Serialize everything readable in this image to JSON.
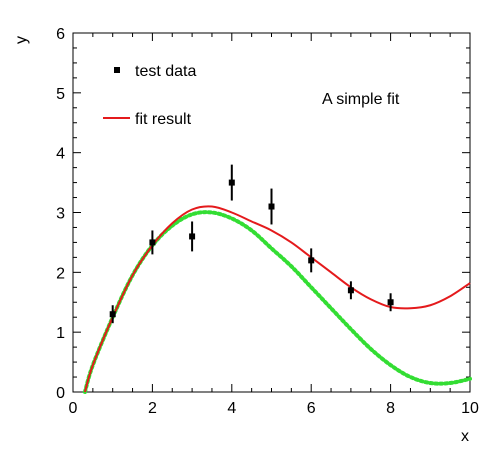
{
  "chart_data": {
    "type": "scatter",
    "xlabel": "x",
    "ylabel": "y",
    "xlim": [
      0,
      10
    ],
    "ylim": [
      0,
      6
    ],
    "xticks": [
      0,
      2,
      4,
      6,
      8,
      10
    ],
    "yticks": [
      0,
      1,
      2,
      3,
      4,
      5,
      6
    ],
    "grid": false,
    "legend_placement": "top-left",
    "annotation": "A simple fit",
    "series": [
      {
        "name": "test data",
        "kind": "points-with-errorbars",
        "color": "#000000",
        "x": [
          1,
          2,
          3,
          4,
          5,
          6,
          7,
          8
        ],
        "y": [
          1.3,
          2.5,
          2.6,
          3.5,
          3.1,
          2.2,
          1.7,
          1.5
        ],
        "yerr": [
          0.15,
          0.2,
          0.25,
          0.3,
          0.3,
          0.2,
          0.15,
          0.15
        ]
      },
      {
        "name": "fit result",
        "kind": "line",
        "color": "#e41a1c",
        "x": [
          0.3,
          0.5,
          1.0,
          1.5,
          2.0,
          2.5,
          3.0,
          3.5,
          4.0,
          4.5,
          5.0,
          5.5,
          6.0,
          6.5,
          7.0,
          7.5,
          8.0,
          8.5,
          9.0,
          9.5,
          10.0
        ],
        "y": [
          0.0,
          0.45,
          1.25,
          1.95,
          2.45,
          2.82,
          3.05,
          3.1,
          3.0,
          2.85,
          2.7,
          2.5,
          2.25,
          2.0,
          1.75,
          1.55,
          1.42,
          1.4,
          1.45,
          1.6,
          1.82
        ]
      },
      {
        "kind": "dotted-line",
        "color": "#33dd33",
        "x": [
          0.3,
          0.5,
          1.0,
          1.5,
          2.0,
          2.5,
          3.0,
          3.5,
          4.0,
          4.5,
          5.0,
          5.5,
          6.0,
          6.5,
          7.0,
          7.5,
          8.0,
          8.5,
          9.0,
          9.5,
          10.0
        ],
        "y": [
          0.0,
          0.45,
          1.25,
          1.95,
          2.45,
          2.78,
          2.97,
          3.0,
          2.9,
          2.7,
          2.4,
          2.1,
          1.75,
          1.4,
          1.05,
          0.72,
          0.45,
          0.25,
          0.15,
          0.15,
          0.22
        ]
      }
    ]
  }
}
